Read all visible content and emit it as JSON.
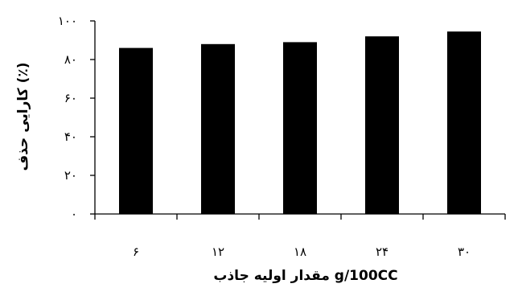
{
  "chart_data": {
    "type": "bar",
    "title": "",
    "xlabel": "مقدار اولیه جاذب g/100CC",
    "ylabel": "کارایی حذف (٪)",
    "categories": [
      "۶",
      "۱۲",
      "۱۸",
      "۲۴",
      "۳۰"
    ],
    "values": [
      86,
      88,
      89,
      92,
      94.5
    ],
    "ylim": [
      0,
      100
    ],
    "yticks": [
      0,
      20,
      40,
      60,
      80,
      100
    ],
    "ytick_labels": [
      "۰",
      "۲۰",
      "۴۰",
      "۶۰",
      "۸۰",
      "۱۰۰"
    ],
    "grid": false,
    "legend": "none",
    "bar_color": "#000000"
  }
}
